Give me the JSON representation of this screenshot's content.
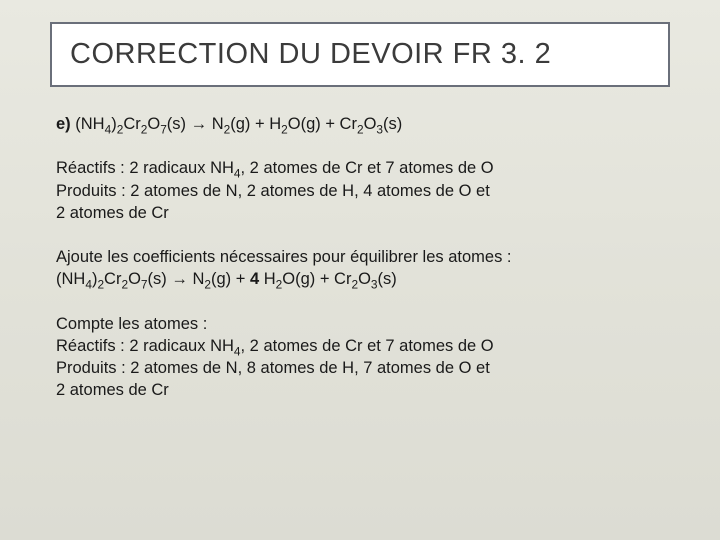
{
  "title": "CORRECTION DU DEVOIR FR 3. 2",
  "eq1": {
    "label": "e) ",
    "lhs_a": "(NH",
    "lhs_a_s": "4",
    "lhs_b": ")",
    "lhs_b_s": "2",
    "lhs_c": "Cr",
    "lhs_c_s": "2",
    "lhs_d": "O",
    "lhs_d_s": "7",
    "lhs_e": "(s) → N",
    "lhs_e_s": "2",
    "lhs_f": "(g) + H",
    "lhs_f_s": "2",
    "lhs_g": "O(g) + Cr",
    "lhs_g_s": "2",
    "lhs_h": "O",
    "lhs_h_s": "3",
    "lhs_i": "(s)"
  },
  "p2": {
    "l1a": "Réactifs : 2 radicaux NH",
    "l1s": "4",
    "l1b": ", 2 atomes de Cr et 7 atomes de O",
    "l2": "Produits : 2 atomes de N, 2 atomes de H, 4 atomes de O et",
    "l3": "2 atomes de Cr"
  },
  "p3": {
    "l1": "Ajoute les coefficients nécessaires pour équilibrer les atomes :",
    "a": "(NH",
    "a_s": "4",
    "b": ")",
    "b_s": "2",
    "c": "Cr",
    "c_s": "2",
    "d": "O",
    "d_s": "7",
    "e": "(s) → N",
    "e_s": "2",
    "f": "(g) + ",
    "coef": "4",
    "g": " H",
    "g_s": "2",
    "h": "O(g) + Cr",
    "h_s": "2",
    "i": "O",
    "i_s": "3",
    "j": "(s)"
  },
  "p4": {
    "l1": "Compte les atomes :",
    "l2a": "Réactifs : 2 radicaux NH",
    "l2s": "4",
    "l2b": ", 2 atomes de Cr et 7 atomes de O",
    "l3": "Produits : 2 atomes de N, 8 atomes de H, 7 atomes de O et",
    "l4": "2 atomes de Cr"
  }
}
